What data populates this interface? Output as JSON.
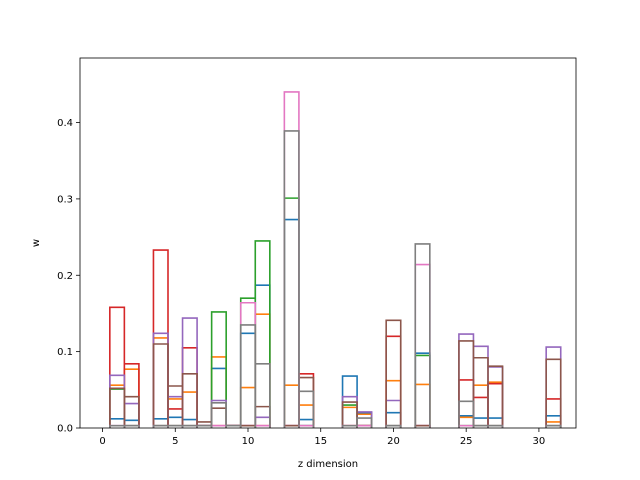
{
  "chart_data": {
    "type": "bar",
    "style": "step-histogram",
    "xlabel": "z dimension",
    "ylabel": "w",
    "xlim": [
      -1.55,
      32.55
    ],
    "ylim": [
      0,
      0.4845
    ],
    "xticks": [
      0,
      5,
      10,
      15,
      20,
      25,
      30
    ],
    "yticks": [
      0.0,
      0.1,
      0.2,
      0.3,
      0.4
    ],
    "xtick_labels": [
      "0",
      "5",
      "10",
      "15",
      "20",
      "25",
      "30"
    ],
    "ytick_labels": [
      "0.0",
      "0.1",
      "0.2",
      "0.3",
      "0.4"
    ],
    "grid": false,
    "x": [
      0,
      1,
      2,
      3,
      4,
      5,
      6,
      7,
      8,
      9,
      10,
      11,
      12,
      13,
      14,
      15,
      16,
      17,
      18,
      19,
      20,
      21,
      22,
      23,
      24,
      25,
      26,
      27,
      28,
      29,
      30,
      31
    ],
    "series": [
      {
        "color": "#1f77b4",
        "values": [
          0,
          0.012,
          0.01,
          0,
          0.012,
          0.014,
          0.011,
          0.003,
          0.078,
          0.003,
          0.124,
          0.187,
          0,
          0.273,
          0.011,
          0,
          0,
          0.068,
          0.02,
          0,
          0.02,
          0,
          0.098,
          0,
          0,
          0.016,
          0.013,
          0.013,
          0,
          0,
          0,
          0.016
        ]
      },
      {
        "color": "#ff7f0e",
        "values": [
          0,
          0.056,
          0.077,
          0,
          0.118,
          0.038,
          0.047,
          0.003,
          0.093,
          0.003,
          0.053,
          0.149,
          0,
          0.056,
          0.03,
          0,
          0,
          0.027,
          0.018,
          0,
          0.062,
          0,
          0.057,
          0,
          0,
          0.014,
          0.056,
          0.06,
          0,
          0,
          0,
          0.008
        ]
      },
      {
        "color": "#2ca02c",
        "values": [
          0,
          0.051,
          0.003,
          0,
          0.003,
          0.003,
          0.003,
          0.003,
          0.152,
          0.003,
          0.17,
          0.245,
          0,
          0.301,
          0.003,
          0,
          0,
          0.03,
          0.003,
          0,
          0.003,
          0,
          0.095,
          0,
          0,
          0.003,
          0.003,
          0.003,
          0,
          0,
          0,
          0.003
        ]
      },
      {
        "color": "#d62728",
        "values": [
          0,
          0.158,
          0.084,
          0,
          0.233,
          0.025,
          0.105,
          0.003,
          0.003,
          0.003,
          0.003,
          0.003,
          0,
          0.003,
          0.071,
          0,
          0,
          0.003,
          0.003,
          0,
          0.12,
          0,
          0.003,
          0,
          0,
          0.063,
          0.04,
          0.058,
          0,
          0,
          0,
          0.038
        ]
      },
      {
        "color": "#9467bd",
        "values": [
          0,
          0.069,
          0.032,
          0,
          0.124,
          0.041,
          0.144,
          0.003,
          0.036,
          0.003,
          0.003,
          0.014,
          0,
          0.003,
          0.003,
          0,
          0,
          0.041,
          0.021,
          0,
          0.036,
          0,
          0.003,
          0,
          0,
          0.123,
          0.107,
          0.08,
          0,
          0,
          0,
          0.106
        ]
      },
      {
        "color": "#8c564b",
        "values": [
          0,
          0.052,
          0.041,
          0,
          0.11,
          0.055,
          0.071,
          0.008,
          0.026,
          0.003,
          0.003,
          0.028,
          0,
          0.003,
          0.066,
          0,
          0,
          0.034,
          0.003,
          0,
          0.141,
          0,
          0.003,
          0,
          0,
          0.114,
          0.092,
          0.081,
          0,
          0,
          0,
          0.09
        ]
      },
      {
        "color": "#e377c2",
        "values": [
          0,
          0.003,
          0.003,
          0,
          0.003,
          0.003,
          0.003,
          0.003,
          0.003,
          0.003,
          0.164,
          0.003,
          0,
          0.44,
          0.003,
          0,
          0,
          0.003,
          0.003,
          0,
          0.003,
          0,
          0.214,
          0,
          0,
          0.003,
          0.003,
          0.003,
          0,
          0,
          0,
          0.003
        ]
      },
      {
        "color": "#7f7f7f",
        "values": [
          0,
          0.003,
          0.003,
          0,
          0.003,
          0.003,
          0.003,
          0.003,
          0.033,
          0.003,
          0.135,
          0.084,
          0,
          0.389,
          0.048,
          0,
          0,
          0.003,
          0.013,
          0,
          0.003,
          0,
          0.241,
          0,
          0,
          0.035,
          0.003,
          0.003,
          0,
          0,
          0,
          0.003
        ]
      }
    ]
  }
}
